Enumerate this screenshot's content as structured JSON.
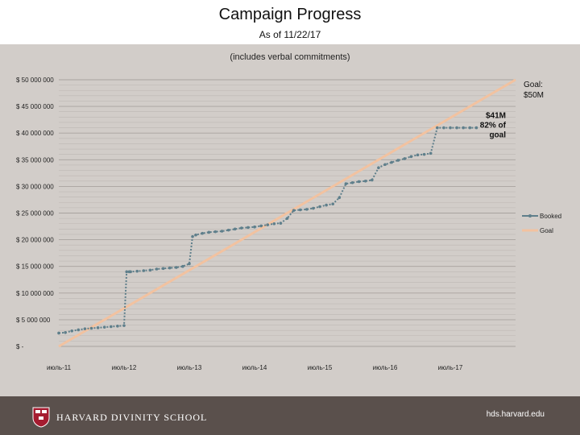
{
  "header": {
    "title": "Campaign Progress",
    "subtitle": "As of 11/22/17"
  },
  "chart_note": "(includes verbal commitments)",
  "footer": {
    "logo_text": "HARVARD DIVINITY SCHOOL",
    "site": "hds.harvard.edu"
  },
  "colors": {
    "booked": "#5f7f8b",
    "goal": "#f2c2a0",
    "footer": "#5a504c"
  },
  "chart_data": {
    "type": "line",
    "y_ticks": [
      0,
      5000000,
      10000000,
      15000000,
      20000000,
      25000000,
      30000000,
      35000000,
      40000000,
      45000000,
      50000000
    ],
    "y_tick_labels": [
      "$ -",
      "$ 5 000 000",
      "$ 10 000 000",
      "$ 15 000 000",
      "$ 20 000 000",
      "$ 25 000 000",
      "$ 30 000 000",
      "$ 35 000 000",
      "$ 40 000 000",
      "$ 45 000 000",
      "$ 50 000 000"
    ],
    "ylim": [
      0,
      50000000
    ],
    "x_ticks": [
      2011,
      2012,
      2013,
      2014,
      2015,
      2016,
      2017
    ],
    "x_tick_labels": [
      "июль-11",
      "июль-12",
      "июль-13",
      "июль-14",
      "июль-15",
      "июль-16",
      "июль-17"
    ],
    "xlim": [
      2011,
      2018
    ],
    "grid": true,
    "legend": "right",
    "series": [
      {
        "name": "Booked",
        "x": [
          2011.0,
          2011.1,
          2011.2,
          2011.3,
          2011.4,
          2011.5,
          2011.6,
          2011.7,
          2011.8,
          2011.9,
          2012.0,
          2012.04,
          2012.08,
          2012.1,
          2012.2,
          2012.3,
          2012.4,
          2012.5,
          2012.6,
          2012.7,
          2012.8,
          2012.9,
          2013.0,
          2013.05,
          2013.1,
          2013.2,
          2013.3,
          2013.4,
          2013.5,
          2013.6,
          2013.7,
          2013.8,
          2013.9,
          2014.0,
          2014.1,
          2014.2,
          2014.3,
          2014.4,
          2014.5,
          2014.6,
          2014.7,
          2014.8,
          2014.9,
          2015.0,
          2015.1,
          2015.2,
          2015.3,
          2015.4,
          2015.5,
          2015.6,
          2015.7,
          2015.8,
          2015.9,
          2016.0,
          2016.1,
          2016.2,
          2016.3,
          2016.4,
          2016.5,
          2016.6,
          2016.7,
          2016.8,
          2016.9,
          2017.0,
          2017.1,
          2017.2,
          2017.3,
          2017.4
        ],
        "y": [
          2500000,
          2600000,
          2900000,
          3100000,
          3300000,
          3400000,
          3500000,
          3600000,
          3700000,
          3800000,
          3900000,
          14000000,
          14000000,
          14000000,
          14100000,
          14200000,
          14300000,
          14500000,
          14600000,
          14700000,
          14800000,
          15000000,
          15500000,
          20600000,
          20900000,
          21200000,
          21400000,
          21500000,
          21600000,
          21800000,
          22000000,
          22200000,
          22300000,
          22400000,
          22600000,
          22800000,
          23000000,
          23100000,
          24000000,
          25500000,
          25600000,
          25700000,
          25900000,
          26200000,
          26500000,
          26700000,
          27900000,
          30500000,
          30700000,
          30900000,
          31000000,
          31200000,
          33500000,
          34100000,
          34500000,
          34900000,
          35200000,
          35600000,
          35900000,
          36000000,
          36200000,
          41000000,
          41000000,
          41000000,
          41000000,
          41000000,
          41000000,
          41000000
        ]
      },
      {
        "name": "Goal",
        "x": [
          2011.0,
          2018.0
        ],
        "y": [
          0,
          50000000
        ]
      }
    ],
    "annotations": [
      {
        "label": [
          "Goal:",
          "$50M"
        ],
        "x": 2018.0,
        "y": 50000000
      },
      {
        "label": [
          "$41M",
          "82% of",
          "goal"
        ],
        "x": 2016.55,
        "y": 41000000
      }
    ]
  }
}
